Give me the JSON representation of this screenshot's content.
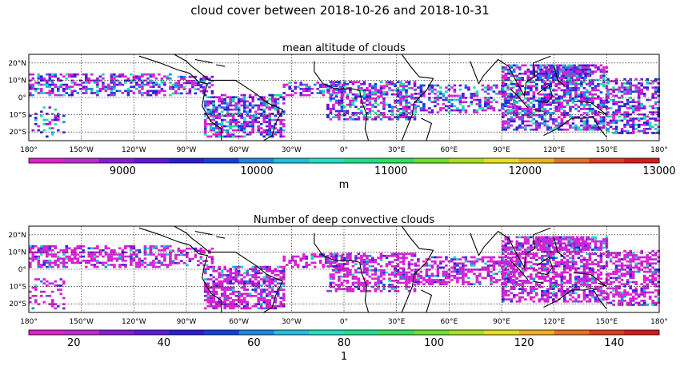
{
  "title": "cloud cover between 2018-10-26 and 2018-10-31",
  "colormap": [
    "#e01fd0",
    "#c227d6",
    "#8a1ad8",
    "#5d15dd",
    "#2a1bd9",
    "#1040e0",
    "#1a86e6",
    "#1fbfe0",
    "#1fe0c0",
    "#1fe08a",
    "#2fe05a",
    "#6ce02a",
    "#a8e020",
    "#e6e01a",
    "#f0b020",
    "#e87020",
    "#e03a1f",
    "#d81818"
  ],
  "chart_data": [
    {
      "type": "heatmap",
      "title": "mean altitude of clouds",
      "xlabel": "",
      "ylabel": "",
      "x_tick_labels": [
        "180°",
        "150°W",
        "120°W",
        "90°W",
        "60°W",
        "30°W",
        "0°",
        "30°E",
        "60°E",
        "90°E",
        "120°E",
        "150°E",
        "180°"
      ],
      "y_tick_labels": [
        "20°N",
        "10°N",
        "0°",
        "10°S",
        "20°S"
      ],
      "xlim": [
        -180,
        180
      ],
      "ylim": [
        -25,
        25
      ],
      "colorbar": {
        "min": 8300,
        "max": 13000,
        "ticks": [
          "9000",
          "10000",
          "11000",
          "12000",
          "13000"
        ],
        "label": "m"
      }
    },
    {
      "type": "heatmap",
      "title": "Number of deep convective clouds",
      "xlabel": "",
      "ylabel": "",
      "x_tick_labels": [
        "180°",
        "150°W",
        "120°W",
        "90°W",
        "60°W",
        "30°W",
        "0°",
        "30°E",
        "60°E",
        "90°E",
        "120°E",
        "150°E",
        "180°"
      ],
      "y_tick_labels": [
        "20°N",
        "10°N",
        "0°",
        "10°S",
        "20°S"
      ],
      "xlim": [
        -180,
        180
      ],
      "ylim": [
        -25,
        25
      ],
      "colorbar": {
        "min": 10,
        "max": 150,
        "ticks": [
          "20",
          "40",
          "60",
          "80",
          "100",
          "120",
          "140"
        ],
        "label": "1"
      }
    }
  ]
}
